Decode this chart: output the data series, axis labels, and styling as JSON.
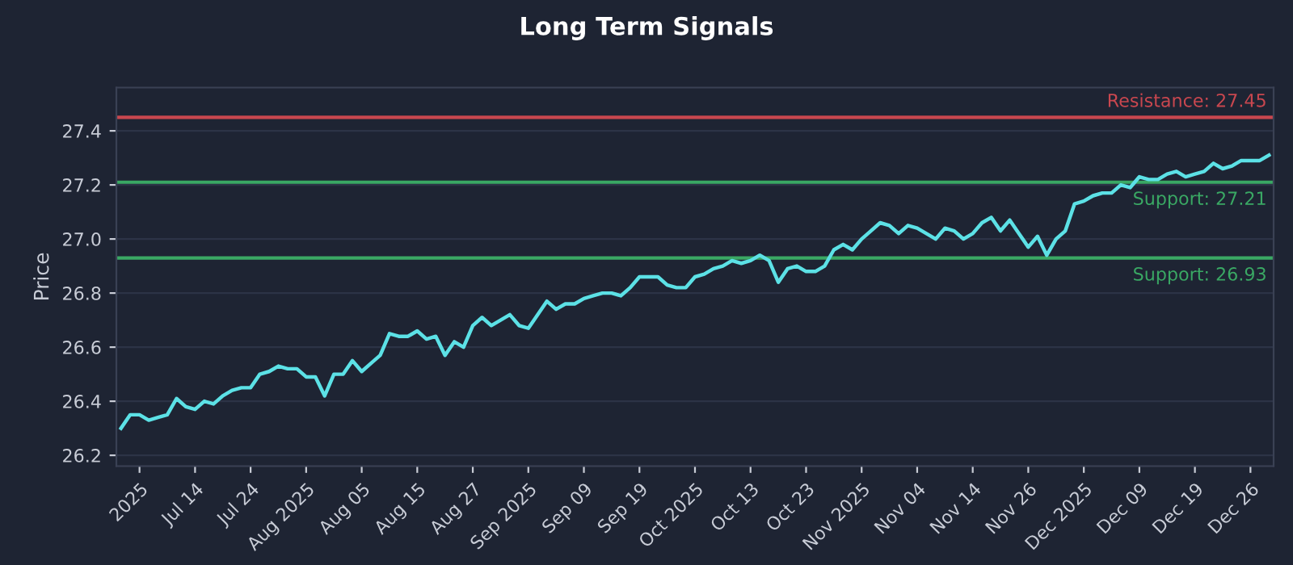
{
  "chart_data": {
    "type": "line",
    "title": "Long Term Signals",
    "ylabel": "Price",
    "categories": [
      null,
      null,
      "2025",
      null,
      null,
      null,
      null,
      null,
      "Jul 14",
      null,
      null,
      null,
      null,
      null,
      "Jul 24",
      null,
      null,
      null,
      null,
      null,
      "Aug 2025",
      null,
      null,
      null,
      null,
      null,
      "Aug 05",
      null,
      null,
      null,
      null,
      null,
      "Aug 15",
      null,
      null,
      null,
      null,
      null,
      "Aug 27",
      null,
      null,
      null,
      null,
      null,
      "Sep 2025",
      null,
      null,
      null,
      null,
      null,
      "Sep 09",
      null,
      null,
      null,
      null,
      null,
      "Sep 19",
      null,
      null,
      null,
      null,
      null,
      "Oct 2025",
      null,
      null,
      null,
      null,
      null,
      "Oct 13",
      null,
      null,
      null,
      null,
      null,
      "Oct 23",
      null,
      null,
      null,
      null,
      null,
      "Nov 2025",
      null,
      null,
      null,
      null,
      null,
      "Nov 04",
      null,
      null,
      null,
      null,
      null,
      "Nov 14",
      null,
      null,
      null,
      null,
      null,
      "Nov 26",
      null,
      null,
      null,
      null,
      null,
      "Dec 2025",
      null,
      null,
      null,
      null,
      null,
      "Dec 09",
      null,
      null,
      null,
      null,
      null,
      "Dec 19",
      null,
      null,
      null,
      null,
      null,
      "Dec 26",
      null,
      null
    ],
    "series": [
      {
        "color": "#5ce1e6",
        "values": [
          26.3,
          26.35,
          26.35,
          26.33,
          26.34,
          26.35,
          26.41,
          26.38,
          26.37,
          26.4,
          26.39,
          26.42,
          26.44,
          26.45,
          26.45,
          26.5,
          26.51,
          26.53,
          26.52,
          26.52,
          26.49,
          26.49,
          26.42,
          26.5,
          26.5,
          26.55,
          26.51,
          26.54,
          26.57,
          26.65,
          26.64,
          26.64,
          26.66,
          26.63,
          26.64,
          26.57,
          26.62,
          26.6,
          26.68,
          26.71,
          26.68,
          26.7,
          26.72,
          26.68,
          26.67,
          26.72,
          26.77,
          26.74,
          26.76,
          26.76,
          26.78,
          26.79,
          26.8,
          26.8,
          26.79,
          26.82,
          26.86,
          26.86,
          26.86,
          26.83,
          26.82,
          26.82,
          26.86,
          26.87,
          26.89,
          26.9,
          26.92,
          26.91,
          26.92,
          26.94,
          26.92,
          26.84,
          26.89,
          26.9,
          26.88,
          26.88,
          26.9,
          26.96,
          26.98,
          26.96,
          27.0,
          27.03,
          27.06,
          27.05,
          27.02,
          27.05,
          27.04,
          27.02,
          27.0,
          27.04,
          27.03,
          27.0,
          27.02,
          27.06,
          27.08,
          27.03,
          27.07,
          27.02,
          26.97,
          27.01,
          26.94,
          27.0,
          27.03,
          27.13,
          27.14,
          27.16,
          27.17,
          27.17,
          27.2,
          27.19,
          27.23,
          27.22,
          27.22,
          27.24,
          27.25,
          27.23,
          27.24,
          27.25,
          27.28,
          27.26,
          27.27,
          27.29,
          27.29,
          27.29,
          27.31
        ]
      }
    ],
    "ylim": [
      26.16,
      27.56
    ],
    "yticks": [
      26.2,
      26.4,
      26.6,
      26.8,
      {
        "value": 27.0,
        "label": "27.0"
      },
      27.2,
      27.4
    ],
    "ref_lines": [
      {
        "axis": "y",
        "value": 27.45,
        "label": "Resistance: 27.45",
        "color": "#c9474f"
      },
      {
        "axis": "y",
        "value": 27.21,
        "label": "Support: 27.21",
        "color": "#3aa864"
      },
      {
        "axis": "y",
        "value": 26.93,
        "label": "Support: 26.93",
        "color": "#3aa864"
      }
    ],
    "grid": "y",
    "legend": false,
    "marker": "none",
    "line_style": "solid"
  }
}
